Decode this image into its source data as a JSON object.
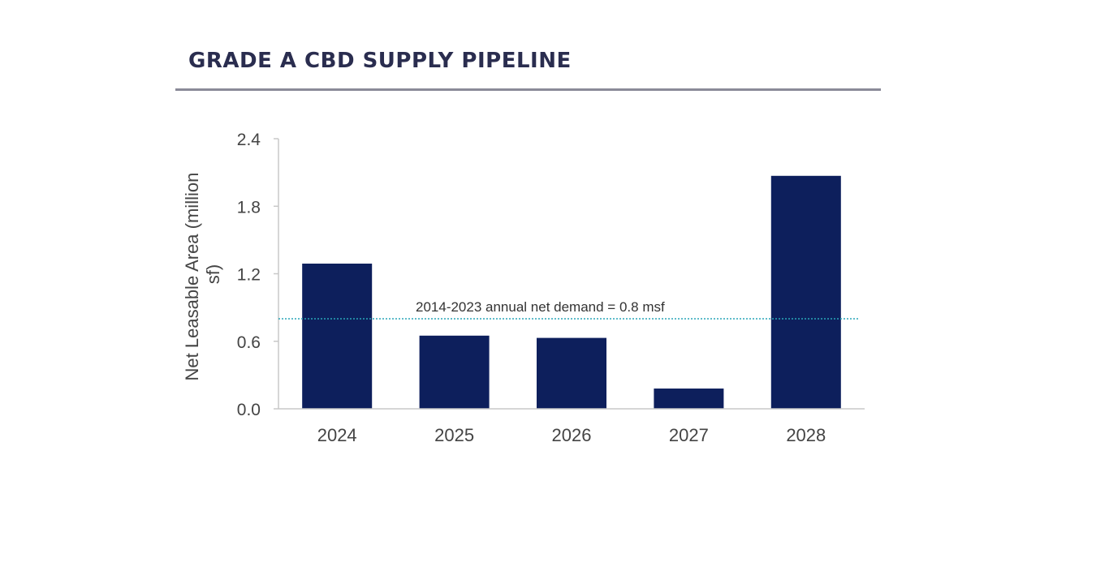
{
  "page": {
    "title": "GRADE A CBD SUPPLY PIPELINE"
  },
  "colors": {
    "title": "#2a2d4f",
    "rule": "#8a8a98",
    "bar": "#0d1f5c",
    "axis": "#c8c8c8",
    "tick_text": "#444444",
    "demand_line": "#2aa6b8",
    "annotation_text": "#333333"
  },
  "chart_data": {
    "type": "bar",
    "title": "",
    "xlabel": "",
    "ylabel": "Net Leasable Area (million sf)",
    "ylabel_lines": [
      "Net Leasable Area (million",
      "sf)"
    ],
    "categories": [
      "2024",
      "2025",
      "2026",
      "2027",
      "2028"
    ],
    "values": [
      1.29,
      0.65,
      0.63,
      0.18,
      2.07
    ],
    "ylim": [
      0,
      2.4
    ],
    "yticks": [
      "0.0",
      "0.6",
      "1.2",
      "1.8",
      "2.4"
    ],
    "ytick_values": [
      0,
      0.6,
      1.2,
      1.8,
      2.4
    ],
    "grid": false,
    "reference_line": {
      "value": 0.8,
      "style": "dotted",
      "label": "2014-2023 annual net demand = 0.8 msf"
    }
  }
}
